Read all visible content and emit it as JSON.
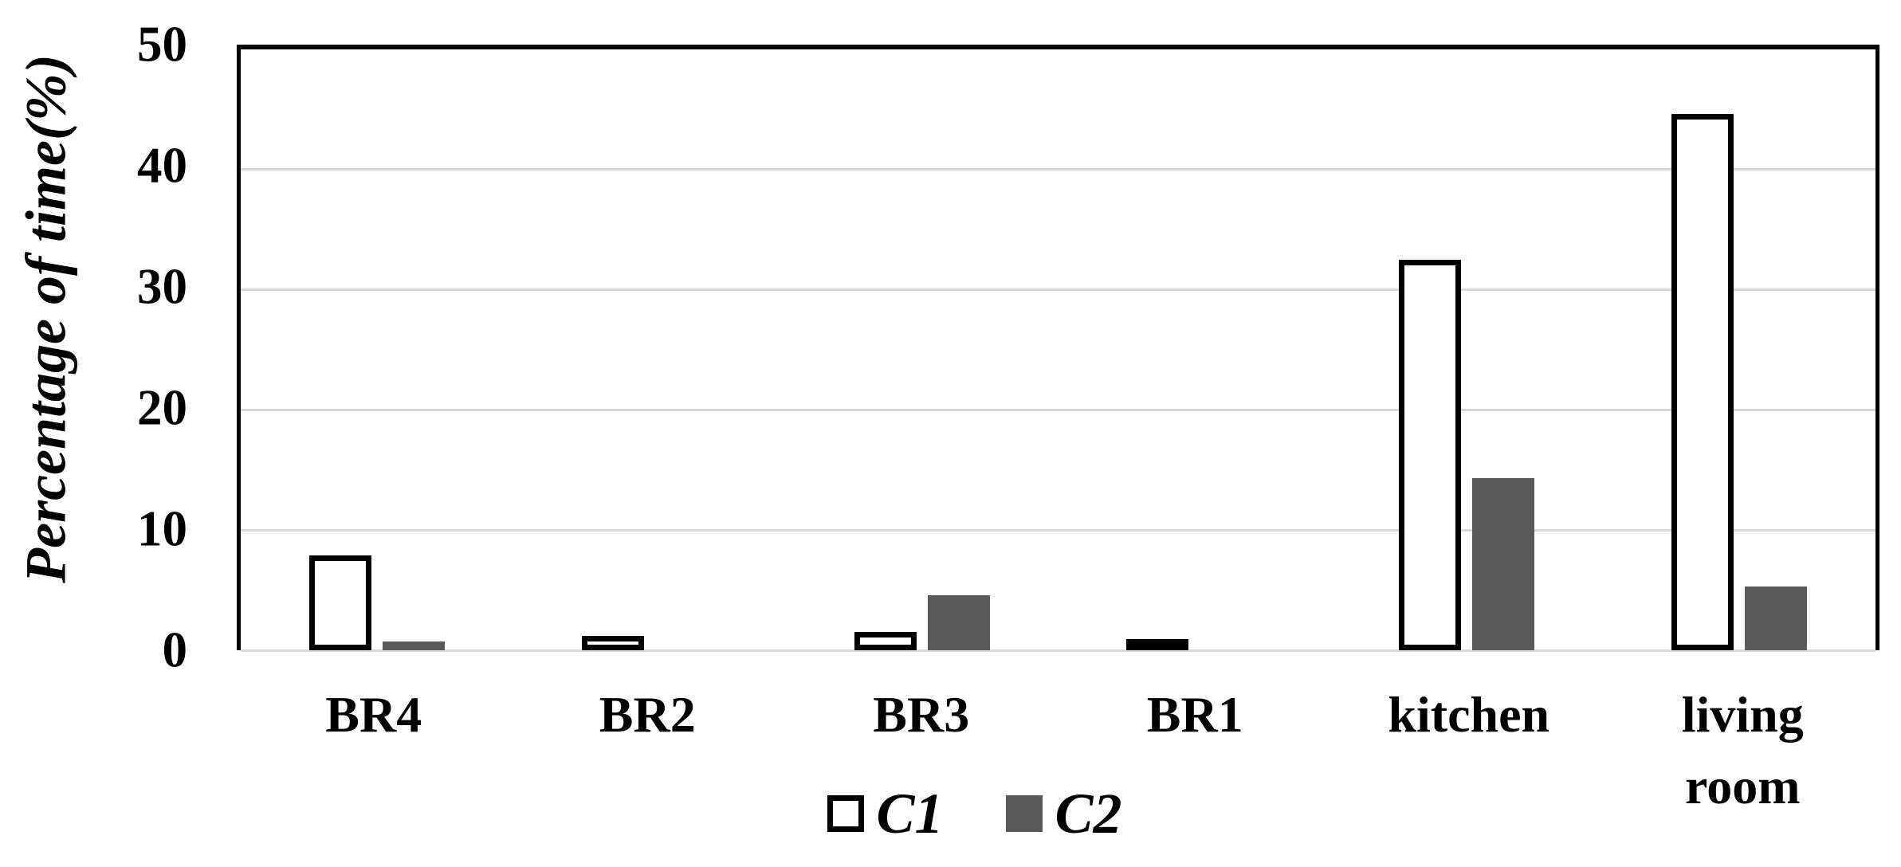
{
  "chart_data": {
    "type": "bar",
    "title": "",
    "xlabel": "",
    "ylabel": "Percentage of time(%)",
    "ylim": [
      0,
      50
    ],
    "yticks": [
      0,
      10,
      20,
      30,
      40,
      50
    ],
    "grid": "horizontal",
    "legend_position": "bottom",
    "categories": [
      "BR4",
      "BR2",
      "BR3",
      "BR1",
      "kitchen",
      "living room"
    ],
    "series": [
      {
        "name": "C1",
        "fill": "#ffffff",
        "border": "#000000",
        "values": [
          7.9,
          1.2,
          1.5,
          0.6,
          32.5,
          44.6
        ]
      },
      {
        "name": "C2",
        "fill": "#595959",
        "border": "none",
        "values": [
          0.7,
          0,
          4.6,
          0,
          14.3,
          5.3
        ]
      }
    ],
    "colors": {
      "gridline": "#d9d9d9",
      "frame": "#000000",
      "c1_fill": "#ffffff",
      "c2_fill": "#595959"
    }
  }
}
